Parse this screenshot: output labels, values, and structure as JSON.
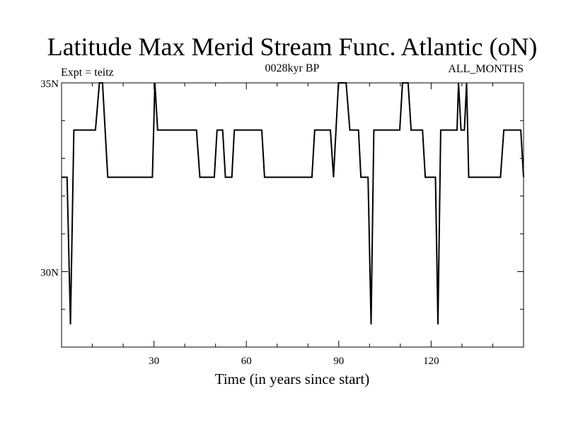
{
  "chart_data": {
    "type": "line",
    "title": "Latitude Max Merid Stream Func. Atlantic (oN)",
    "subtitle_left": "Expt = teitz",
    "subtitle_center": "0028kyr BP",
    "subtitle_right": "ALL_MONTHS",
    "xlabel": "Time (in years since start)",
    "ylabel": "",
    "xlim": [
      0,
      150
    ],
    "ylim": [
      28,
      35
    ],
    "x_ticks": [
      {
        "value": 30,
        "label": "30"
      },
      {
        "value": 60,
        "label": "60"
      },
      {
        "value": 90,
        "label": "90"
      },
      {
        "value": 120,
        "label": "120"
      }
    ],
    "y_ticks": [
      {
        "value": 30,
        "label": "30N"
      },
      {
        "value": 35,
        "label": "35N"
      }
    ],
    "grid": false,
    "series": [
      {
        "color": "#000000",
        "points": [
          [
            0,
            32.5
          ],
          [
            1.8,
            32.5
          ],
          [
            2.9,
            28.6
          ],
          [
            4,
            33.75
          ],
          [
            11,
            33.75
          ],
          [
            12.3,
            35
          ],
          [
            13.3,
            35
          ],
          [
            15,
            32.5
          ],
          [
            29.5,
            32.5
          ],
          [
            30.3,
            35
          ],
          [
            31.2,
            33.75
          ],
          [
            43.8,
            33.75
          ],
          [
            44.9,
            32.5
          ],
          [
            49.6,
            32.5
          ],
          [
            50.5,
            33.75
          ],
          [
            52.3,
            33.75
          ],
          [
            53.2,
            32.5
          ],
          [
            55.3,
            32.5
          ],
          [
            56.1,
            33.75
          ],
          [
            65,
            33.75
          ],
          [
            65.9,
            32.5
          ],
          [
            81.3,
            32.5
          ],
          [
            82.2,
            33.75
          ],
          [
            87.3,
            33.75
          ],
          [
            88.3,
            32.5
          ],
          [
            89.9,
            35
          ],
          [
            92.4,
            35
          ],
          [
            93.6,
            33.75
          ],
          [
            96.4,
            33.75
          ],
          [
            97.2,
            32.5
          ],
          [
            99.5,
            32.5
          ],
          [
            100.5,
            28.6
          ],
          [
            101.4,
            33.75
          ],
          [
            109.8,
            33.75
          ],
          [
            110.7,
            35
          ],
          [
            112.5,
            35
          ],
          [
            113.5,
            33.75
          ],
          [
            117.2,
            33.75
          ],
          [
            118.1,
            32.5
          ],
          [
            121.4,
            32.5
          ],
          [
            122.2,
            28.6
          ],
          [
            123.1,
            33.75
          ],
          [
            128.4,
            33.75
          ],
          [
            128.9,
            35
          ],
          [
            129.7,
            33.75
          ],
          [
            130.8,
            33.75
          ],
          [
            131.5,
            35
          ],
          [
            132.2,
            32.5
          ],
          [
            142.5,
            32.5
          ],
          [
            143.6,
            33.75
          ],
          [
            149.1,
            33.75
          ],
          [
            150,
            32.5
          ]
        ]
      }
    ]
  }
}
